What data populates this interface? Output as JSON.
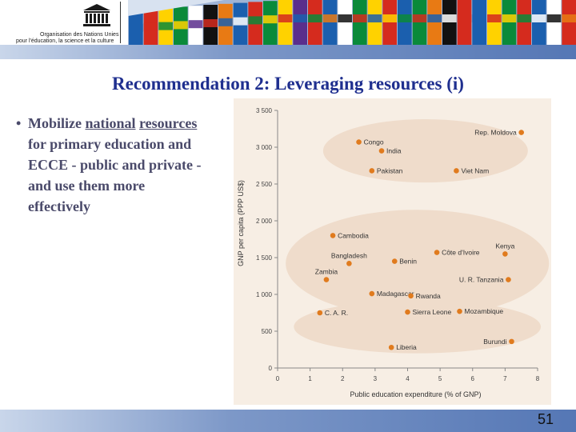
{
  "header": {
    "org_line1": "Organisation des Nations Unies",
    "org_line2": "pour l'éducation, la science et la culture",
    "flag_colors": [
      "#1b5fae",
      "#d52b1e",
      "#ffd200",
      "#0a8a3a",
      "#ffffff",
      "#111111",
      "#e87a14",
      "#1b5fae",
      "#d52b1e",
      "#0a8a3a",
      "#ffd200",
      "#5a2e8c",
      "#d52b1e",
      "#1b5fae",
      "#ffffff",
      "#0a8a3a",
      "#ffd200",
      "#d52b1e",
      "#1b5fae",
      "#0a8a3a",
      "#e87a14",
      "#111111",
      "#d52b1e",
      "#1b5fae",
      "#ffd200",
      "#0a8a3a",
      "#d52b1e",
      "#1b5fae",
      "#ffffff",
      "#d52b1e"
    ]
  },
  "title": "Recommendation 2: Leveraging resources (i)",
  "bullet": {
    "pre": "Mobilize ",
    "u1": "national",
    "u2": "resources",
    "post": " for primary education and ECCE - public and private - and use them more effectively"
  },
  "page_number": "51",
  "chart_data": {
    "type": "scatter",
    "xlabel": "Public education expenditure (% of GNP)",
    "ylabel": "GNP per capita (PPP US$)",
    "xlim": [
      0,
      8
    ],
    "ylim": [
      0,
      3500
    ],
    "x_ticks": [
      "0",
      "1",
      "2",
      "3",
      "4",
      "5",
      "6",
      "7",
      "8"
    ],
    "y_ticks": [
      "0",
      "500",
      "1 000",
      "1 500",
      "2 000",
      "2 500",
      "3 000",
      "3 500"
    ],
    "point_color": "#e07b1e",
    "cluster_color": "#efdccb",
    "points": [
      {
        "label": "Congo",
        "x": 2.5,
        "y": 3070
      },
      {
        "label": "India",
        "x": 3.2,
        "y": 2950
      },
      {
        "label": "Rep. Moldova",
        "x": 7.5,
        "y": 3200
      },
      {
        "label": "Pakistan",
        "x": 2.9,
        "y": 2680
      },
      {
        "label": "Viet Nam",
        "x": 5.5,
        "y": 2680
      },
      {
        "label": "Cambodia",
        "x": 1.7,
        "y": 1800
      },
      {
        "label": "Kenya",
        "x": 7.0,
        "y": 1550
      },
      {
        "label": "Côte d'Ivoire",
        "x": 4.9,
        "y": 1570
      },
      {
        "label": "Bangladesh",
        "x": 2.2,
        "y": 1420
      },
      {
        "label": "Benin",
        "x": 3.6,
        "y": 1450
      },
      {
        "label": "Zambia",
        "x": 1.5,
        "y": 1200
      },
      {
        "label": "U. R. Tanzania",
        "x": 7.1,
        "y": 1200
      },
      {
        "label": "Madagascar",
        "x": 2.9,
        "y": 1010
      },
      {
        "label": "Rwanda",
        "x": 4.1,
        "y": 980
      },
      {
        "label": "C. A. R.",
        "x": 1.3,
        "y": 750
      },
      {
        "label": "Sierra Leone",
        "x": 4.0,
        "y": 760
      },
      {
        "label": "Mozambique",
        "x": 5.6,
        "y": 770
      },
      {
        "label": "Burundi",
        "x": 7.2,
        "y": 360
      },
      {
        "label": "Liberia",
        "x": 3.5,
        "y": 280
      }
    ]
  }
}
